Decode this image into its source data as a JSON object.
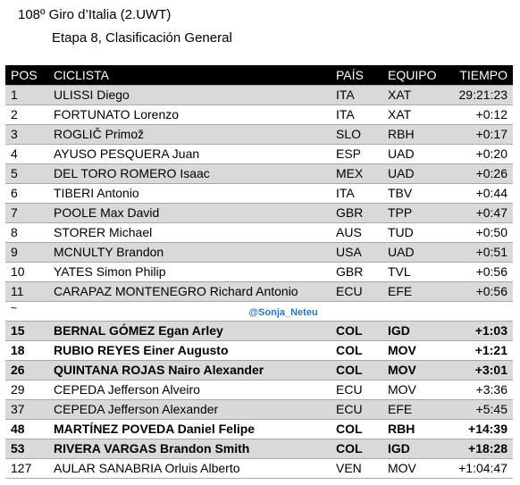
{
  "header": {
    "title": "108º Giro d’Italia (2.UWT)",
    "subtitle": "Etapa 8, Clasificación General"
  },
  "table": {
    "columns": [
      "POS",
      "CICLISTA",
      "PAÍS",
      "EQUIPO",
      "TIEMPO"
    ],
    "rows": [
      {
        "pos": "1",
        "name": "ULISSI Diego",
        "country": "ITA",
        "team": "XAT",
        "time": "29:21:23"
      },
      {
        "pos": "2",
        "name": "FORTUNATO Lorenzo",
        "country": "ITA",
        "team": "XAT",
        "time": "+0:12"
      },
      {
        "pos": "3",
        "name": "ROGLIČ Primož",
        "country": "SLO",
        "team": "RBH",
        "time": "+0:17"
      },
      {
        "pos": "4",
        "name": "AYUSO PESQUERA Juan",
        "country": "ESP",
        "team": "UAD",
        "time": "+0:20"
      },
      {
        "pos": "5",
        "name": "DEL TORO ROMERO Isaac",
        "country": "MEX",
        "team": "UAD",
        "time": "+0:26"
      },
      {
        "pos": "6",
        "name": "TIBERI Antonio",
        "country": "ITA",
        "team": "TBV",
        "time": "+0:44"
      },
      {
        "pos": "7",
        "name": "POOLE Max David",
        "country": "GBR",
        "team": "TPP",
        "time": "+0:47"
      },
      {
        "pos": "8",
        "name": "STORER Michael",
        "country": "AUS",
        "team": "TUD",
        "time": "+0:50"
      },
      {
        "pos": "9",
        "name": "MCNULTY Brandon",
        "country": "USA",
        "team": "UAD",
        "time": "+0:51"
      },
      {
        "pos": "10",
        "name": "YATES Simon Philip",
        "country": "GBR",
        "team": "TVL",
        "time": "+0:56"
      },
      {
        "pos": "11",
        "name": "CARAPAZ MONTENEGRO Richard Antonio",
        "country": "ECU",
        "team": "EFE",
        "time": "+0:56"
      }
    ],
    "separator": "~",
    "watermark": "@Sonja_Neteu",
    "rows2": [
      {
        "pos": "15",
        "name": "BERNAL GÓMEZ Egan Arley",
        "country": "COL",
        "team": "IGD",
        "time": "+1:03"
      },
      {
        "pos": "18",
        "name": "RUBIO REYES Einer Augusto",
        "country": "COL",
        "team": "MOV",
        "time": "+1:21"
      },
      {
        "pos": "26",
        "name": "QUINTANA ROJAS Nairo Alexander",
        "country": "COL",
        "team": "MOV",
        "time": "+3:01"
      },
      {
        "pos": "29",
        "name": "CEPEDA Jefferson Alveiro",
        "country": "ECU",
        "team": "MOV",
        "time": "+3:36"
      },
      {
        "pos": "37",
        "name": "CEPEDA Jefferson Alexander",
        "country": "ECU",
        "team": "EFE",
        "time": "+5:45"
      },
      {
        "pos": "48",
        "name": "MARTÍNEZ POVEDA Daniel Felipe",
        "country": "COL",
        "team": "RBH",
        "time": "+14:39"
      },
      {
        "pos": "53",
        "name": "RIVERA VARGAS Brandon Smith",
        "country": "COL",
        "team": "IGD",
        "time": "+18:28"
      },
      {
        "pos": "127",
        "name": "AULAR SANABRIA Orluis Alberto",
        "country": "VEN",
        "team": "MOV",
        "time": "+1:04:47"
      }
    ]
  }
}
